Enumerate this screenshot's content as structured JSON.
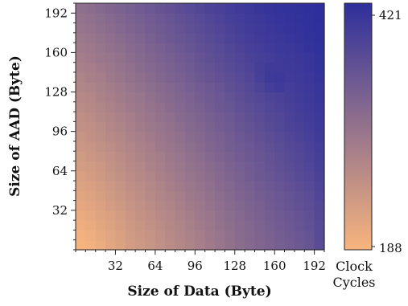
{
  "chart_data": {
    "type": "heatmap",
    "xlabel": "Size of Data (Byte)",
    "ylabel": "Size of AAD (Byte)",
    "x_ticks": [
      32,
      64,
      96,
      128,
      160,
      192
    ],
    "y_ticks": [
      32,
      64,
      96,
      128,
      160,
      192
    ],
    "x_range": [
      0,
      200
    ],
    "y_range": [
      0,
      200
    ],
    "colorbar": {
      "label_line1": "Clock",
      "label_line2": "Cycles",
      "min": 188,
      "max": 421,
      "min_label": "188",
      "max_label": "421",
      "low_color": "#f8b57d",
      "high_color": "#2e2f9c"
    },
    "cell_size_bytes": 8,
    "x_centers": [
      4,
      12,
      20,
      28,
      36,
      44,
      52,
      60,
      68,
      76,
      84,
      92,
      100,
      108,
      116,
      124,
      132,
      140,
      148,
      156,
      164,
      172,
      180,
      188,
      196
    ],
    "y_centers": [
      4,
      12,
      20,
      28,
      36,
      44,
      52,
      60,
      68,
      76,
      84,
      92,
      100,
      108,
      116,
      124,
      132,
      140,
      148,
      156,
      164,
      172,
      180,
      188,
      196
    ],
    "z": [
      [
        190,
        195,
        203,
        213,
        220,
        230,
        238,
        244,
        252,
        260,
        266,
        274,
        282,
        290,
        298,
        306,
        314,
        320,
        326,
        332,
        338,
        342,
        350,
        356,
        370
      ],
      [
        195,
        200,
        208,
        216,
        224,
        234,
        240,
        246,
        254,
        262,
        270,
        276,
        284,
        292,
        300,
        308,
        316,
        322,
        328,
        334,
        340,
        346,
        352,
        358,
        372
      ],
      [
        200,
        204,
        212,
        220,
        228,
        236,
        244,
        250,
        258,
        266,
        272,
        280,
        288,
        296,
        304,
        312,
        318,
        324,
        330,
        338,
        344,
        350,
        356,
        362,
        374
      ],
      [
        204,
        210,
        218,
        224,
        232,
        240,
        248,
        254,
        262,
        268,
        276,
        284,
        292,
        298,
        306,
        314,
        320,
        328,
        334,
        340,
        346,
        352,
        358,
        364,
        376
      ],
      [
        210,
        214,
        222,
        230,
        236,
        244,
        252,
        258,
        266,
        272,
        280,
        288,
        294,
        302,
        310,
        318,
        324,
        330,
        336,
        344,
        350,
        356,
        362,
        368,
        378
      ],
      [
        214,
        220,
        226,
        234,
        242,
        248,
        256,
        262,
        270,
        276,
        284,
        292,
        298,
        306,
        314,
        320,
        328,
        334,
        340,
        346,
        352,
        358,
        364,
        370,
        382
      ],
      [
        220,
        224,
        232,
        238,
        246,
        254,
        260,
        266,
        274,
        282,
        288,
        296,
        302,
        310,
        318,
        324,
        332,
        338,
        344,
        350,
        356,
        362,
        368,
        374,
        384
      ],
      [
        224,
        230,
        236,
        244,
        250,
        258,
        264,
        270,
        278,
        286,
        292,
        300,
        306,
        314,
        320,
        328,
        334,
        342,
        348,
        354,
        360,
        366,
        372,
        378,
        388
      ],
      [
        230,
        234,
        240,
        248,
        256,
        262,
        268,
        276,
        282,
        290,
        296,
        304,
        310,
        318,
        324,
        332,
        338,
        344,
        350,
        358,
        364,
        370,
        376,
        382,
        392
      ],
      [
        234,
        240,
        246,
        252,
        260,
        266,
        274,
        280,
        286,
        294,
        300,
        308,
        314,
        322,
        328,
        336,
        342,
        348,
        354,
        360,
        366,
        372,
        378,
        384,
        394
      ],
      [
        240,
        244,
        250,
        258,
        264,
        270,
        278,
        284,
        292,
        298,
        304,
        312,
        318,
        326,
        332,
        340,
        346,
        352,
        358,
        364,
        370,
        376,
        382,
        388,
        396
      ],
      [
        244,
        250,
        256,
        262,
        268,
        276,
        282,
        288,
        296,
        302,
        308,
        316,
        322,
        330,
        336,
        342,
        350,
        356,
        362,
        368,
        374,
        380,
        386,
        392,
        400
      ],
      [
        250,
        254,
        260,
        268,
        274,
        280,
        288,
        294,
        300,
        306,
        314,
        320,
        326,
        334,
        340,
        346,
        354,
        360,
        366,
        372,
        378,
        384,
        390,
        396,
        402
      ],
      [
        254,
        260,
        266,
        272,
        278,
        284,
        292,
        298,
        304,
        310,
        318,
        324,
        330,
        338,
        344,
        350,
        358,
        364,
        370,
        376,
        380,
        388,
        394,
        398,
        404
      ],
      [
        260,
        264,
        270,
        276,
        284,
        290,
        296,
        302,
        308,
        316,
        322,
        328,
        334,
        342,
        348,
        354,
        362,
        368,
        374,
        380,
        384,
        390,
        396,
        400,
        406
      ],
      [
        264,
        268,
        276,
        282,
        288,
        294,
        300,
        308,
        314,
        320,
        326,
        332,
        340,
        346,
        352,
        360,
        366,
        372,
        378,
        384,
        388,
        394,
        398,
        402,
        408
      ],
      [
        270,
        274,
        280,
        286,
        292,
        300,
        306,
        312,
        318,
        324,
        330,
        338,
        344,
        350,
        356,
        364,
        370,
        376,
        384,
        396,
        400,
        396,
        400,
        404,
        410
      ],
      [
        274,
        280,
        284,
        292,
        298,
        304,
        310,
        316,
        324,
        330,
        336,
        342,
        348,
        356,
        362,
        368,
        374,
        380,
        392,
        402,
        404,
        400,
        402,
        406,
        412
      ],
      [
        280,
        284,
        290,
        296,
        302,
        308,
        316,
        322,
        328,
        334,
        340,
        346,
        354,
        360,
        366,
        372,
        378,
        384,
        394,
        400,
        400,
        402,
        404,
        408,
        414
      ],
      [
        284,
        290,
        296,
        300,
        306,
        314,
        320,
        326,
        332,
        338,
        344,
        350,
        358,
        364,
        370,
        376,
        382,
        388,
        392,
        396,
        400,
        404,
        406,
        410,
        416
      ],
      [
        290,
        294,
        300,
        306,
        312,
        318,
        324,
        330,
        336,
        342,
        350,
        356,
        362,
        368,
        374,
        380,
        386,
        392,
        396,
        400,
        404,
        406,
        410,
        414,
        418
      ],
      [
        294,
        300,
        304,
        310,
        316,
        322,
        328,
        336,
        342,
        348,
        354,
        360,
        366,
        372,
        378,
        384,
        390,
        396,
        400,
        404,
        406,
        410,
        412,
        416,
        419
      ],
      [
        300,
        304,
        310,
        316,
        322,
        328,
        334,
        340,
        346,
        352,
        358,
        364,
        370,
        376,
        382,
        388,
        394,
        398,
        402,
        406,
        410,
        412,
        414,
        418,
        420
      ],
      [
        304,
        310,
        314,
        320,
        326,
        332,
        338,
        344,
        350,
        356,
        362,
        368,
        374,
        380,
        386,
        392,
        396,
        402,
        406,
        410,
        412,
        414,
        416,
        418,
        421
      ],
      [
        310,
        314,
        320,
        326,
        332,
        338,
        344,
        350,
        356,
        362,
        368,
        374,
        380,
        386,
        390,
        396,
        400,
        404,
        408,
        412,
        414,
        416,
        418,
        420,
        421
      ]
    ]
  }
}
